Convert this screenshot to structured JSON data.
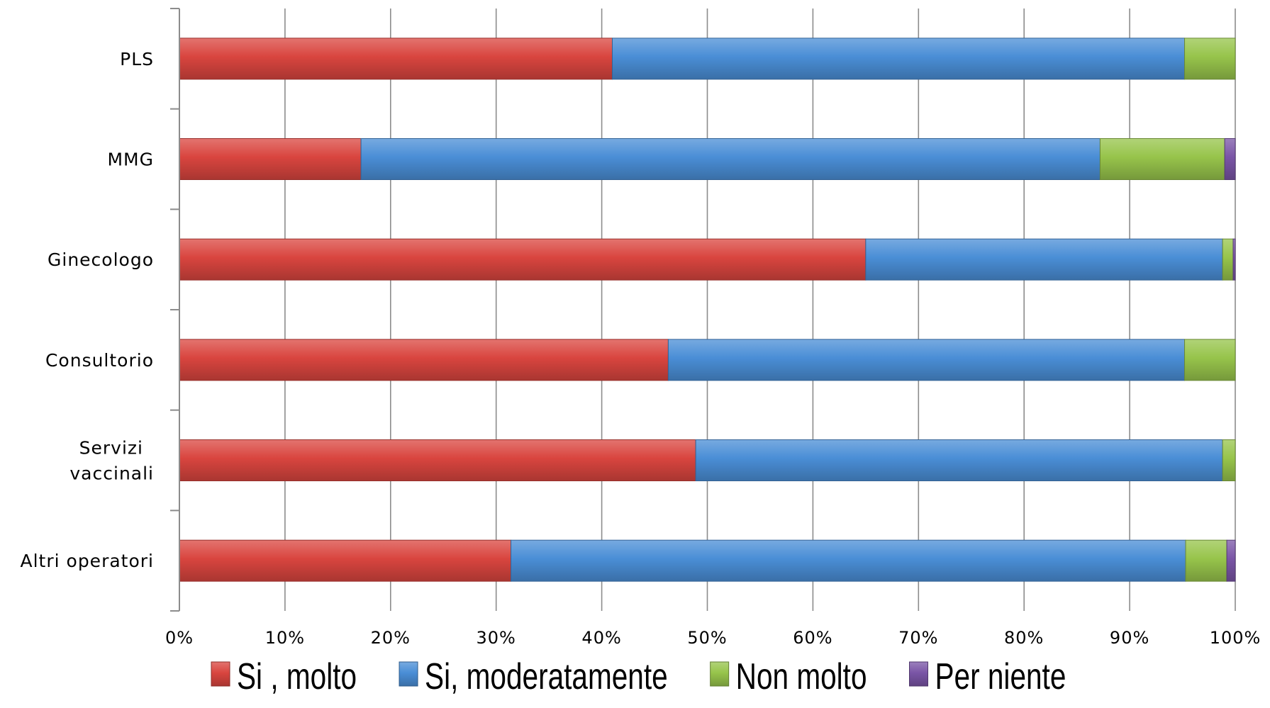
{
  "chart_data": {
    "type": "bar",
    "orientation": "horizontal",
    "stacked": "percent",
    "categories": [
      "PLS",
      "MMG",
      "Ginecologo",
      "Consultorio",
      "Servizi vaccinali",
      "Altri operatori"
    ],
    "category_display": [
      [
        "PLS"
      ],
      [
        "MMG"
      ],
      [
        "Ginecologo"
      ],
      [
        "Consultorio"
      ],
      [
        "Servizi",
        "vaccinali"
      ],
      [
        "Altri operatori"
      ]
    ],
    "series": [
      {
        "name": "Si , molto",
        "color": "#d9453f",
        "values": [
          41,
          17.2,
          65,
          46.3,
          48.9,
          31.4
        ]
      },
      {
        "name": "Si, moderatamente",
        "color": "#4a8ed6",
        "values": [
          54.2,
          70,
          33.8,
          48.9,
          49.9,
          63.9
        ]
      },
      {
        "name": "Non molto",
        "color": "#97c44b",
        "values": [
          4.8,
          11.8,
          1.0,
          4.8,
          1.2,
          3.9
        ]
      },
      {
        "name": "Per niente",
        "color": "#7a55a6",
        "values": [
          0,
          1.0,
          0.2,
          0,
          0,
          0.8
        ]
      }
    ],
    "xticks": [
      "0%",
      "10%",
      "20%",
      "30%",
      "40%",
      "50%",
      "60%",
      "70%",
      "80%",
      "90%",
      "100%"
    ],
    "xlim": [
      0,
      100
    ],
    "grid": true,
    "legend_position": "bottom"
  }
}
